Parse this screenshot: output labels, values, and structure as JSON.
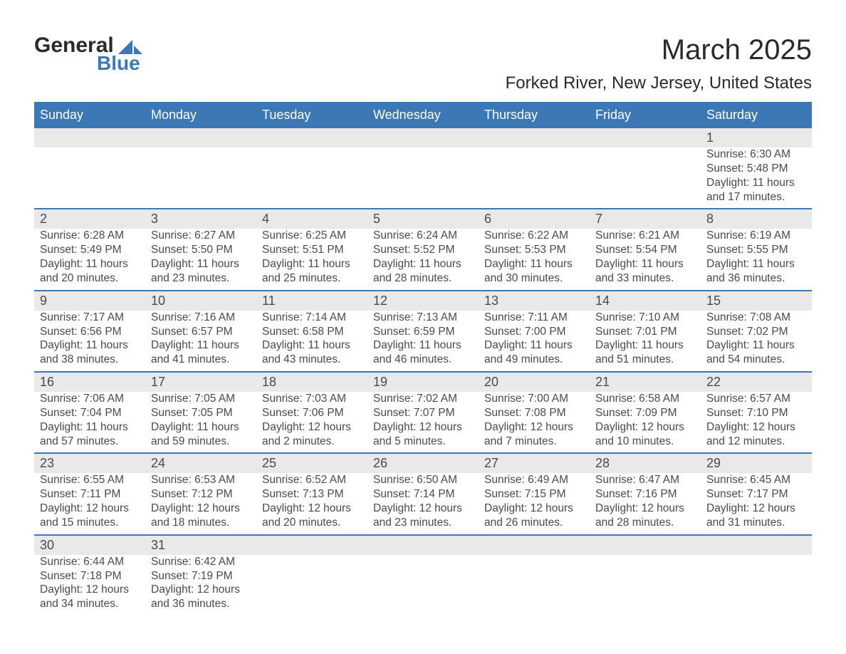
{
  "brand": {
    "name_top": "General",
    "name_bottom": "Blue",
    "logo_color": "#3b78b5"
  },
  "title": "March 2025",
  "location": "Forked River, New Jersey, United States",
  "colors": {
    "header_bg": "#3b78b5",
    "header_text": "#ffffff",
    "daynum_bg": "#e9e9e9",
    "body_text": "#4a4a4a",
    "rule": "#3b78b5",
    "page_bg": "#ffffff"
  },
  "fonts": {
    "title_size_pt": 30,
    "location_size_pt": 18,
    "th_size_pt": 14,
    "cell_size_pt": 12
  },
  "day_headers": [
    "Sunday",
    "Monday",
    "Tuesday",
    "Wednesday",
    "Thursday",
    "Friday",
    "Saturday"
  ],
  "weeks": [
    [
      null,
      null,
      null,
      null,
      null,
      null,
      {
        "n": "1",
        "sunrise": "Sunrise: 6:30 AM",
        "sunset": "Sunset: 5:48 PM",
        "d1": "Daylight: 11 hours",
        "d2": "and 17 minutes."
      }
    ],
    [
      {
        "n": "2",
        "sunrise": "Sunrise: 6:28 AM",
        "sunset": "Sunset: 5:49 PM",
        "d1": "Daylight: 11 hours",
        "d2": "and 20 minutes."
      },
      {
        "n": "3",
        "sunrise": "Sunrise: 6:27 AM",
        "sunset": "Sunset: 5:50 PM",
        "d1": "Daylight: 11 hours",
        "d2": "and 23 minutes."
      },
      {
        "n": "4",
        "sunrise": "Sunrise: 6:25 AM",
        "sunset": "Sunset: 5:51 PM",
        "d1": "Daylight: 11 hours",
        "d2": "and 25 minutes."
      },
      {
        "n": "5",
        "sunrise": "Sunrise: 6:24 AM",
        "sunset": "Sunset: 5:52 PM",
        "d1": "Daylight: 11 hours",
        "d2": "and 28 minutes."
      },
      {
        "n": "6",
        "sunrise": "Sunrise: 6:22 AM",
        "sunset": "Sunset: 5:53 PM",
        "d1": "Daylight: 11 hours",
        "d2": "and 30 minutes."
      },
      {
        "n": "7",
        "sunrise": "Sunrise: 6:21 AM",
        "sunset": "Sunset: 5:54 PM",
        "d1": "Daylight: 11 hours",
        "d2": "and 33 minutes."
      },
      {
        "n": "8",
        "sunrise": "Sunrise: 6:19 AM",
        "sunset": "Sunset: 5:55 PM",
        "d1": "Daylight: 11 hours",
        "d2": "and 36 minutes."
      }
    ],
    [
      {
        "n": "9",
        "sunrise": "Sunrise: 7:17 AM",
        "sunset": "Sunset: 6:56 PM",
        "d1": "Daylight: 11 hours",
        "d2": "and 38 minutes."
      },
      {
        "n": "10",
        "sunrise": "Sunrise: 7:16 AM",
        "sunset": "Sunset: 6:57 PM",
        "d1": "Daylight: 11 hours",
        "d2": "and 41 minutes."
      },
      {
        "n": "11",
        "sunrise": "Sunrise: 7:14 AM",
        "sunset": "Sunset: 6:58 PM",
        "d1": "Daylight: 11 hours",
        "d2": "and 43 minutes."
      },
      {
        "n": "12",
        "sunrise": "Sunrise: 7:13 AM",
        "sunset": "Sunset: 6:59 PM",
        "d1": "Daylight: 11 hours",
        "d2": "and 46 minutes."
      },
      {
        "n": "13",
        "sunrise": "Sunrise: 7:11 AM",
        "sunset": "Sunset: 7:00 PM",
        "d1": "Daylight: 11 hours",
        "d2": "and 49 minutes."
      },
      {
        "n": "14",
        "sunrise": "Sunrise: 7:10 AM",
        "sunset": "Sunset: 7:01 PM",
        "d1": "Daylight: 11 hours",
        "d2": "and 51 minutes."
      },
      {
        "n": "15",
        "sunrise": "Sunrise: 7:08 AM",
        "sunset": "Sunset: 7:02 PM",
        "d1": "Daylight: 11 hours",
        "d2": "and 54 minutes."
      }
    ],
    [
      {
        "n": "16",
        "sunrise": "Sunrise: 7:06 AM",
        "sunset": "Sunset: 7:04 PM",
        "d1": "Daylight: 11 hours",
        "d2": "and 57 minutes."
      },
      {
        "n": "17",
        "sunrise": "Sunrise: 7:05 AM",
        "sunset": "Sunset: 7:05 PM",
        "d1": "Daylight: 11 hours",
        "d2": "and 59 minutes."
      },
      {
        "n": "18",
        "sunrise": "Sunrise: 7:03 AM",
        "sunset": "Sunset: 7:06 PM",
        "d1": "Daylight: 12 hours",
        "d2": "and 2 minutes."
      },
      {
        "n": "19",
        "sunrise": "Sunrise: 7:02 AM",
        "sunset": "Sunset: 7:07 PM",
        "d1": "Daylight: 12 hours",
        "d2": "and 5 minutes."
      },
      {
        "n": "20",
        "sunrise": "Sunrise: 7:00 AM",
        "sunset": "Sunset: 7:08 PM",
        "d1": "Daylight: 12 hours",
        "d2": "and 7 minutes."
      },
      {
        "n": "21",
        "sunrise": "Sunrise: 6:58 AM",
        "sunset": "Sunset: 7:09 PM",
        "d1": "Daylight: 12 hours",
        "d2": "and 10 minutes."
      },
      {
        "n": "22",
        "sunrise": "Sunrise: 6:57 AM",
        "sunset": "Sunset: 7:10 PM",
        "d1": "Daylight: 12 hours",
        "d2": "and 12 minutes."
      }
    ],
    [
      {
        "n": "23",
        "sunrise": "Sunrise: 6:55 AM",
        "sunset": "Sunset: 7:11 PM",
        "d1": "Daylight: 12 hours",
        "d2": "and 15 minutes."
      },
      {
        "n": "24",
        "sunrise": "Sunrise: 6:53 AM",
        "sunset": "Sunset: 7:12 PM",
        "d1": "Daylight: 12 hours",
        "d2": "and 18 minutes."
      },
      {
        "n": "25",
        "sunrise": "Sunrise: 6:52 AM",
        "sunset": "Sunset: 7:13 PM",
        "d1": "Daylight: 12 hours",
        "d2": "and 20 minutes."
      },
      {
        "n": "26",
        "sunrise": "Sunrise: 6:50 AM",
        "sunset": "Sunset: 7:14 PM",
        "d1": "Daylight: 12 hours",
        "d2": "and 23 minutes."
      },
      {
        "n": "27",
        "sunrise": "Sunrise: 6:49 AM",
        "sunset": "Sunset: 7:15 PM",
        "d1": "Daylight: 12 hours",
        "d2": "and 26 minutes."
      },
      {
        "n": "28",
        "sunrise": "Sunrise: 6:47 AM",
        "sunset": "Sunset: 7:16 PM",
        "d1": "Daylight: 12 hours",
        "d2": "and 28 minutes."
      },
      {
        "n": "29",
        "sunrise": "Sunrise: 6:45 AM",
        "sunset": "Sunset: 7:17 PM",
        "d1": "Daylight: 12 hours",
        "d2": "and 31 minutes."
      }
    ],
    [
      {
        "n": "30",
        "sunrise": "Sunrise: 6:44 AM",
        "sunset": "Sunset: 7:18 PM",
        "d1": "Daylight: 12 hours",
        "d2": "and 34 minutes."
      },
      {
        "n": "31",
        "sunrise": "Sunrise: 6:42 AM",
        "sunset": "Sunset: 7:19 PM",
        "d1": "Daylight: 12 hours",
        "d2": "and 36 minutes."
      },
      null,
      null,
      null,
      null,
      null
    ]
  ]
}
